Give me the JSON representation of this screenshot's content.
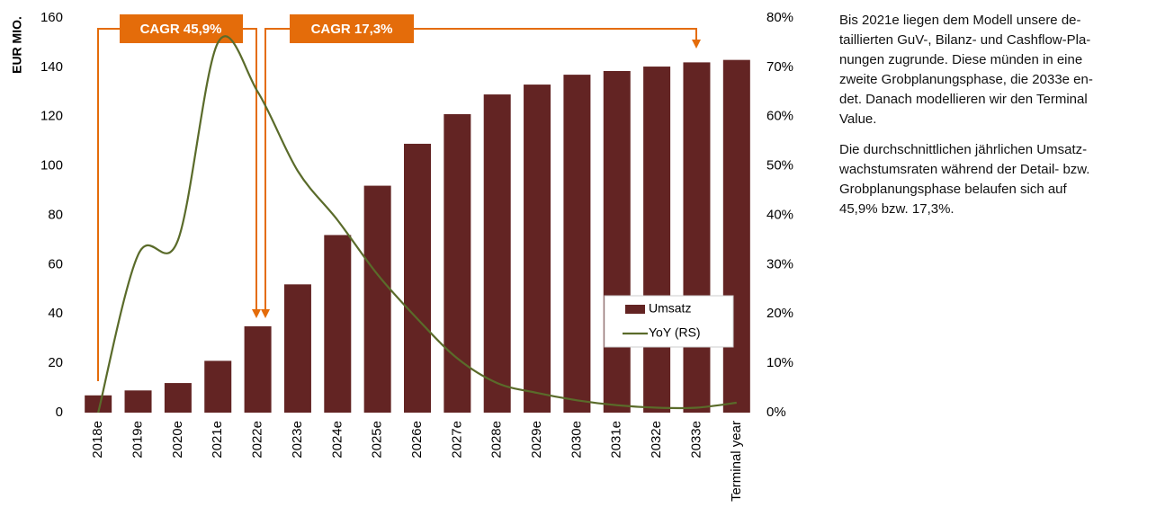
{
  "chart_data": {
    "type": "bar",
    "y_label": "EUR MIO.",
    "categories": [
      "2018e",
      "2019e",
      "2020e",
      "2021e",
      "2022e",
      "2023e",
      "2024e",
      "2025e",
      "2026e",
      "2027e",
      "2028e",
      "2029e",
      "2030e",
      "2031e",
      "2032e",
      "2033e",
      "Terminal year"
    ],
    "series": [
      {
        "name": "Umsatz",
        "type": "bar",
        "color": "#632423",
        "values": [
          7,
          9,
          12,
          21,
          35,
          52,
          72,
          92,
          109,
          121,
          129,
          133,
          137,
          138.5,
          140.3,
          142,
          143
        ]
      },
      {
        "name": "YoY (RS)",
        "type": "line",
        "axis": "y2",
        "color": "#5a6b2a",
        "values": [
          0,
          32,
          35,
          75,
          65,
          49,
          39,
          28,
          19,
          11,
          6,
          4,
          2.5,
          1.5,
          1,
          1,
          2
        ]
      }
    ],
    "ylim": [
      0,
      160
    ],
    "yticks": [
      0,
      20,
      40,
      60,
      80,
      100,
      120,
      140,
      160
    ],
    "y2lim": [
      0,
      80
    ],
    "y2ticks": [
      {
        "value": 0,
        "label": "0%"
      },
      {
        "value": 10,
        "label": "10%"
      },
      {
        "value": 20,
        "label": "20%"
      },
      {
        "value": 30,
        "label": "30%"
      },
      {
        "value": 40,
        "label": "40%"
      },
      {
        "value": 50,
        "label": "50%"
      },
      {
        "value": 60,
        "label": "60%"
      },
      {
        "value": 70,
        "label": "70%"
      },
      {
        "value": 80,
        "label": "80%"
      }
    ],
    "annotations": [
      "CAGR 45,9%",
      "CAGR 17,3%"
    ],
    "legend": "lower right",
    "grid": false
  },
  "side_text": {
    "paragraphs": [
      {
        "lines": [
          "Bis 2021e liegen dem Modell unsere de-",
          "taillierten GuV-, Bilanz- und Cashflow-Pla-",
          "nungen zugrunde. Diese münden in eine",
          "zweite Grobplanungsphase, die 2033e en-",
          "det. Danach modellieren wir den Terminal",
          "Value."
        ]
      },
      {
        "lines": [
          "Die durchschnittlichen jährlichen Umsatz-",
          "wachstumsraten während der Detail- bzw.",
          "Grobplanungsphase belaufen sich auf",
          "45,9% bzw. 17,3%."
        ]
      }
    ]
  }
}
